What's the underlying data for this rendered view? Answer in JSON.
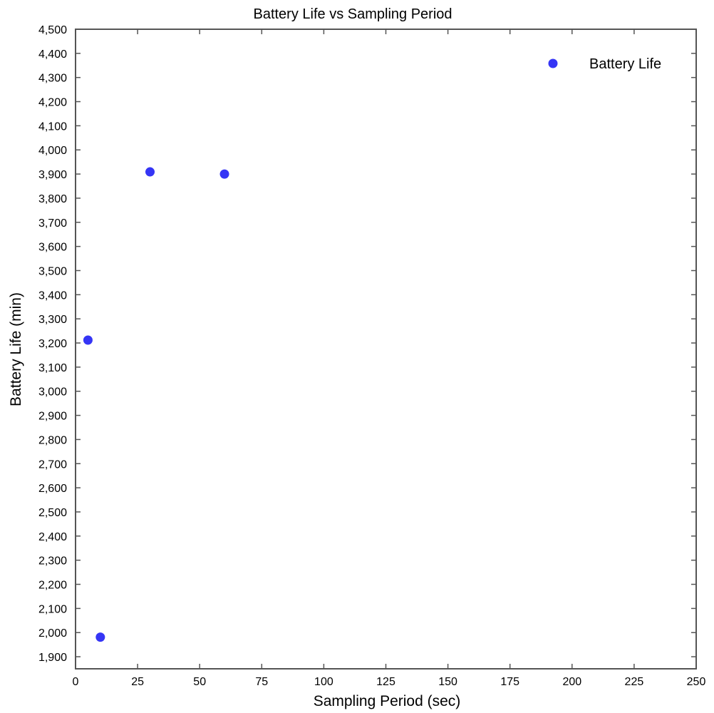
{
  "chart_data": {
    "type": "scatter",
    "title": "Battery Life vs Sampling Period",
    "xlabel": "Sampling Period (sec)",
    "ylabel": "Battery Life (min)",
    "xlim": [
      0,
      250
    ],
    "ylim": [
      1850,
      4500
    ],
    "x_ticks": [
      0,
      25,
      50,
      75,
      100,
      125,
      150,
      175,
      200,
      225,
      250
    ],
    "x_tick_labels": [
      "0",
      "25",
      "50",
      "75",
      "100",
      "125",
      "150",
      "175",
      "200",
      "225",
      "250"
    ],
    "y_ticks": [
      1900,
      2000,
      2100,
      2200,
      2300,
      2400,
      2500,
      2600,
      2700,
      2800,
      2900,
      3000,
      3100,
      3200,
      3300,
      3400,
      3500,
      3600,
      3700,
      3800,
      3900,
      4000,
      4100,
      4200,
      4300,
      4400,
      4500
    ],
    "y_tick_labels": [
      "1,900",
      "2,000",
      "2,100",
      "2,200",
      "2,300",
      "2,400",
      "2,500",
      "2,600",
      "2,700",
      "2,800",
      "2,900",
      "3,000",
      "3,100",
      "3,200",
      "3,300",
      "3,400",
      "3,500",
      "3,600",
      "3,700",
      "3,800",
      "3,900",
      "4,000",
      "4,100",
      "4,200",
      "4,300",
      "4,400",
      "4,500"
    ],
    "grid": false,
    "legend_position": "top-right",
    "series": [
      {
        "name": "Battery Life",
        "color": "#3535f5",
        "x": [
          5,
          10,
          30,
          60
        ],
        "y": [
          3212,
          1981,
          3909,
          3900
        ]
      }
    ]
  }
}
